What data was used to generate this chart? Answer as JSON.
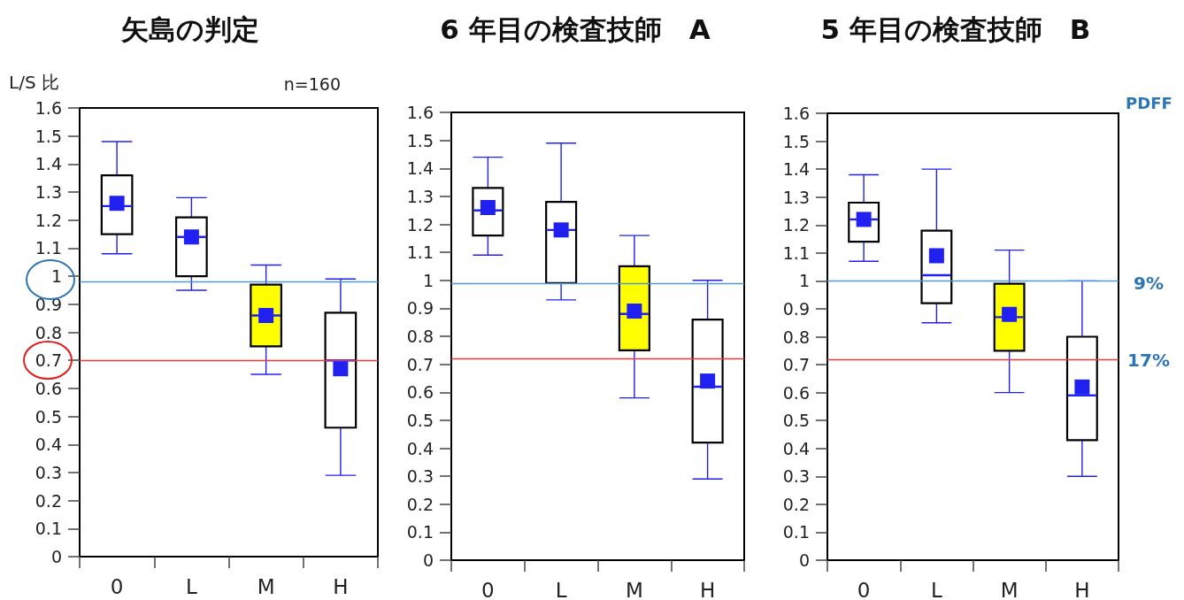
{
  "chart_data": [
    {
      "type": "box",
      "title": "矢島の判定",
      "ylabel": "L/S 比",
      "annotations": [
        "n=160"
      ],
      "categories": [
        "0",
        "L",
        "M",
        "H"
      ],
      "boxes": [
        {
          "low": 1.08,
          "q1": 1.15,
          "median": 1.25,
          "q3": 1.36,
          "high": 1.48,
          "mean": 1.26
        },
        {
          "low": 0.95,
          "q1": 1.0,
          "median": 1.14,
          "q3": 1.21,
          "high": 1.28,
          "mean": 1.14
        },
        {
          "low": 0.65,
          "q1": 0.75,
          "median": 0.86,
          "q3": 0.97,
          "high": 1.04,
          "mean": 0.86
        },
        {
          "low": 0.29,
          "q1": 0.46,
          "median": 0.7,
          "q3": 0.87,
          "high": 0.99,
          "mean": 0.67
        }
      ],
      "colors": [
        "#ffffff",
        "#ffffff",
        "#ffff00",
        "#ffffff"
      ],
      "color": "#2020f0",
      "marker": "square",
      "ylim": [
        0,
        1.6
      ],
      "yticks": [
        0,
        0.1,
        0.2,
        0.3,
        0.4,
        0.5,
        0.6,
        0.7,
        0.8,
        0.9,
        1,
        1.1,
        1.2,
        1.3,
        1.4,
        1.5,
        1.6
      ],
      "ref_lines": [
        {
          "axis": "y",
          "value": 0.98,
          "color": "#4f9ad6",
          "line_style": "solid"
        },
        {
          "axis": "y",
          "value": 0.7,
          "color": "#e83c3c",
          "line_style": "solid"
        }
      ]
    },
    {
      "type": "box",
      "title": "6 年目の検査技師　A",
      "categories": [
        "0",
        "L",
        "M",
        "H"
      ],
      "boxes": [
        {
          "low": 1.09,
          "q1": 1.16,
          "median": 1.25,
          "q3": 1.33,
          "high": 1.44,
          "mean": 1.26
        },
        {
          "low": 0.93,
          "q1": 0.99,
          "median": 1.18,
          "q3": 1.28,
          "high": 1.49,
          "mean": 1.18
        },
        {
          "low": 0.58,
          "q1": 0.75,
          "median": 0.88,
          "q3": 1.05,
          "high": 1.16,
          "mean": 0.89
        },
        {
          "low": 0.29,
          "q1": 0.42,
          "median": 0.62,
          "q3": 0.86,
          "high": 1.0,
          "mean": 0.64
        }
      ],
      "colors": [
        "#ffffff",
        "#ffffff",
        "#ffff00",
        "#ffffff"
      ],
      "color": "#2020f0",
      "marker": "square",
      "ylim": [
        0,
        1.6
      ],
      "yticks": [
        0,
        0.1,
        0.2,
        0.3,
        0.4,
        0.5,
        0.6,
        0.7,
        0.8,
        0.9,
        1,
        1.1,
        1.2,
        1.3,
        1.4,
        1.5,
        1.6
      ],
      "ref_lines": [
        {
          "axis": "y",
          "value": 0.99,
          "color": "#4f9ad6",
          "line_style": "solid"
        },
        {
          "axis": "y",
          "value": 0.72,
          "color": "#e83c3c",
          "line_style": "solid"
        }
      ]
    },
    {
      "type": "box",
      "title": "5 年目の検査技師　B",
      "annotations": [
        "PDFF",
        "9%",
        "17%"
      ],
      "categories": [
        "0",
        "L",
        "M",
        "H"
      ],
      "boxes": [
        {
          "low": 1.07,
          "q1": 1.14,
          "median": 1.22,
          "q3": 1.28,
          "high": 1.38,
          "mean": 1.22
        },
        {
          "low": 0.85,
          "q1": 0.92,
          "median": 1.02,
          "q3": 1.18,
          "high": 1.4,
          "mean": 1.09
        },
        {
          "low": 0.6,
          "q1": 0.75,
          "median": 0.87,
          "q3": 0.99,
          "high": 1.11,
          "mean": 0.88
        },
        {
          "low": 0.3,
          "q1": 0.43,
          "median": 0.59,
          "q3": 0.8,
          "high": 1.0,
          "mean": 0.62
        }
      ],
      "colors": [
        "#ffffff",
        "#ffffff",
        "#ffff00",
        "#ffffff"
      ],
      "color": "#2020f0",
      "marker": "square",
      "ylim": [
        0,
        1.6
      ],
      "yticks": [
        0,
        0.1,
        0.2,
        0.3,
        0.4,
        0.5,
        0.6,
        0.7,
        0.8,
        0.9,
        1,
        1.1,
        1.2,
        1.3,
        1.4,
        1.5,
        1.6
      ],
      "ref_lines": [
        {
          "axis": "y",
          "value": 1.0,
          "color": "#4f9ad6",
          "line_style": "solid"
        },
        {
          "axis": "y",
          "value": 0.72,
          "color": "#e83c3c",
          "line_style": "solid"
        }
      ]
    }
  ]
}
